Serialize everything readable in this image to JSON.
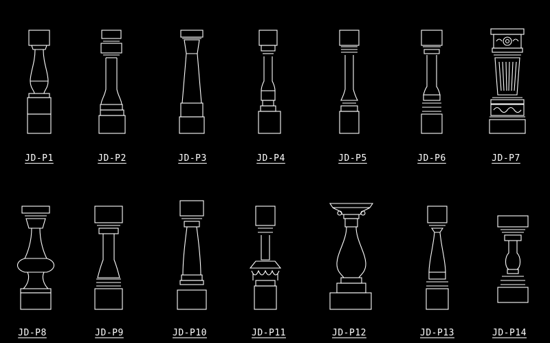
{
  "colors": {
    "background": "#000000",
    "line": "#ffffff"
  },
  "balusters": [
    {
      "label": "JD-P1"
    },
    {
      "label": "JD-P2"
    },
    {
      "label": "JD-P3"
    },
    {
      "label": "JD-P4"
    },
    {
      "label": "JD-P5"
    },
    {
      "label": "JD-P6"
    },
    {
      "label": "JD-P7"
    },
    {
      "label": "JD-P8"
    },
    {
      "label": "JD-P9"
    },
    {
      "label": "JD-P10"
    },
    {
      "label": "JD-P11"
    },
    {
      "label": "JD-P12"
    },
    {
      "label": "JD-P13"
    },
    {
      "label": "JD-P14"
    }
  ]
}
